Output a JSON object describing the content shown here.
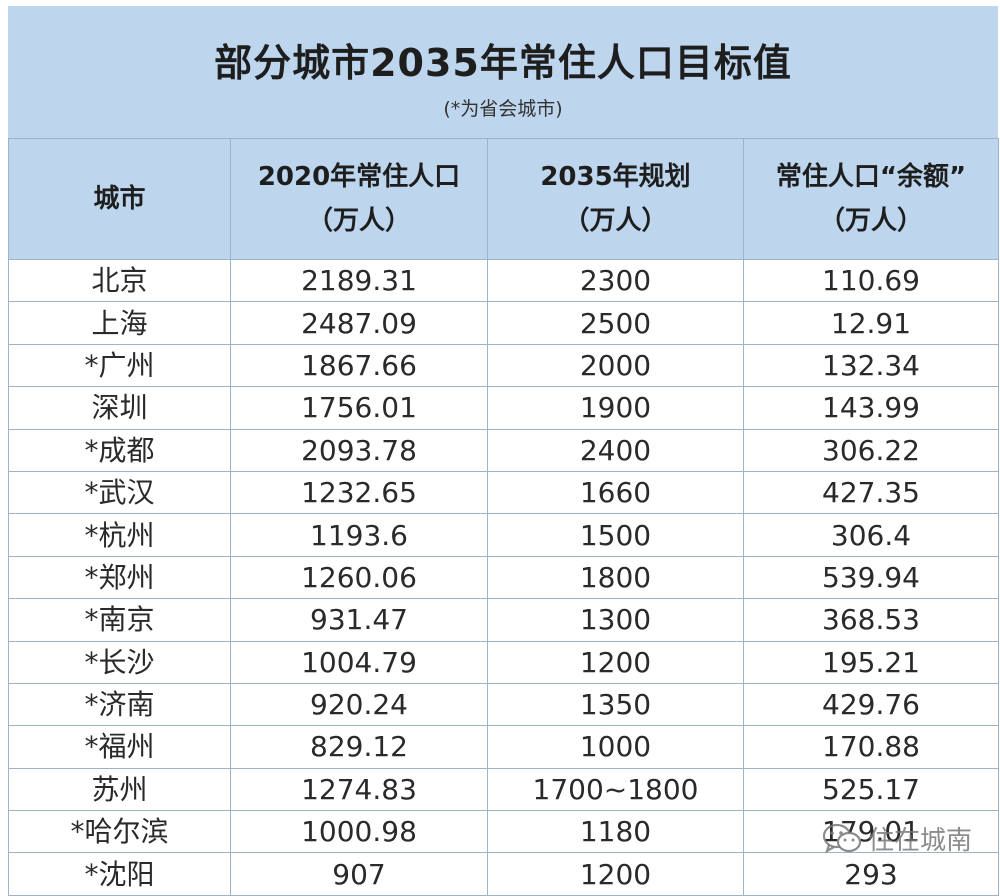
{
  "title": "部分城市2035年常住人口目标值",
  "subtitle": "(*为省会城市)",
  "columns": [
    {
      "line1": "城市",
      "line2": ""
    },
    {
      "line1": "2020年常住人口",
      "line2": "（万人）"
    },
    {
      "line1": "2035年规划",
      "line2": "（万人）"
    },
    {
      "line1": "常住人口“余额”",
      "line2": "（万人）"
    }
  ],
  "rows": [
    {
      "city": "北京",
      "pop2020": "2189.31",
      "plan2035": "2300",
      "balance": "110.69"
    },
    {
      "city": "上海",
      "pop2020": "2487.09",
      "plan2035": "2500",
      "balance": "12.91"
    },
    {
      "city": "*广州",
      "pop2020": "1867.66",
      "plan2035": "2000",
      "balance": "132.34"
    },
    {
      "city": "深圳",
      "pop2020": "1756.01",
      "plan2035": "1900",
      "balance": "143.99"
    },
    {
      "city": "*成都",
      "pop2020": "2093.78",
      "plan2035": "2400",
      "balance": "306.22"
    },
    {
      "city": "*武汉",
      "pop2020": "1232.65",
      "plan2035": "1660",
      "balance": "427.35"
    },
    {
      "city": "*杭州",
      "pop2020": "1193.6",
      "plan2035": "1500",
      "balance": "306.4"
    },
    {
      "city": "*郑州",
      "pop2020": "1260.06",
      "plan2035": "1800",
      "balance": "539.94"
    },
    {
      "city": "*南京",
      "pop2020": "931.47",
      "plan2035": "1300",
      "balance": "368.53"
    },
    {
      "city": "*长沙",
      "pop2020": "1004.79",
      "plan2035": "1200",
      "balance": "195.21"
    },
    {
      "city": "*济南",
      "pop2020": "920.24",
      "plan2035": "1350",
      "balance": "429.76"
    },
    {
      "city": "*福州",
      "pop2020": "829.12",
      "plan2035": "1000",
      "balance": "170.88"
    },
    {
      "city": "苏州",
      "pop2020": "1274.83",
      "plan2035": "1700~1800",
      "balance": "525.17"
    },
    {
      "city": "*哈尔滨",
      "pop2020": "1000.98",
      "plan2035": "1180",
      "balance": "179.01"
    },
    {
      "city": "*沈阳",
      "pop2020": "907",
      "plan2035": "1200",
      "balance": "293"
    }
  ],
  "watermark": {
    "text": "住在城南",
    "icon": "wechat-icon"
  }
}
